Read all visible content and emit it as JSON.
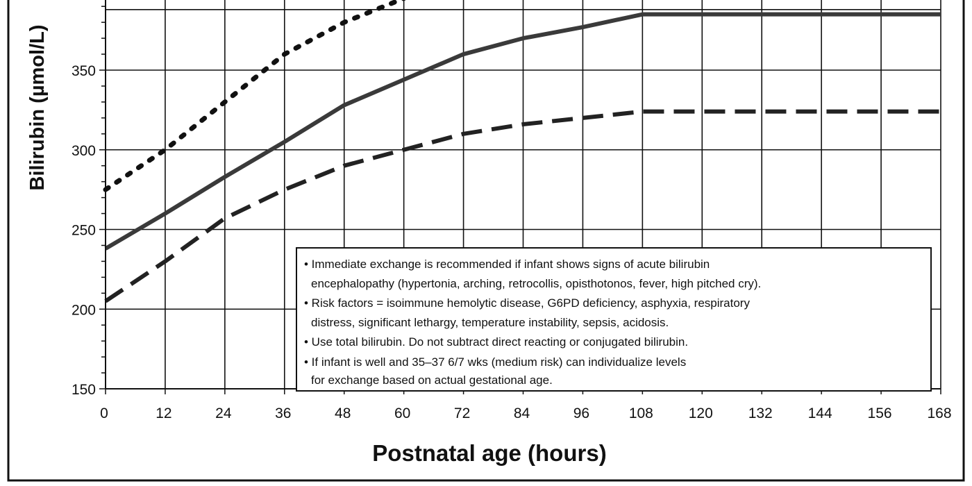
{
  "chart_data": {
    "type": "line",
    "xlabel": "Postnatal age (hours)",
    "ylabel": "Bilirubin (µmol/L)",
    "xlim": [
      0,
      168
    ],
    "ylim": [
      150,
      390
    ],
    "x_ticks": [
      0,
      12,
      24,
      36,
      48,
      60,
      72,
      84,
      96,
      108,
      120,
      132,
      144,
      156,
      168
    ],
    "y_ticks": [
      150,
      200,
      250,
      300,
      350
    ],
    "grid": true,
    "series": [
      {
        "style": "dotted",
        "color": "#111111",
        "x": [
          0,
          12,
          24,
          36,
          48,
          60
        ],
        "y": [
          275,
          300,
          330,
          360,
          380,
          395
        ]
      },
      {
        "style": "solid",
        "color": "#3a3a3a",
        "x": [
          0,
          12,
          24,
          36,
          48,
          60,
          72,
          84,
          96,
          108,
          120,
          132,
          144,
          156,
          168
        ],
        "y": [
          238,
          260,
          283,
          305,
          328,
          344,
          360,
          370,
          377,
          385,
          385,
          385,
          385,
          385,
          385
        ]
      },
      {
        "style": "dashed",
        "color": "#222222",
        "x": [
          0,
          12,
          24,
          36,
          48,
          60,
          72,
          84,
          96,
          108,
          120,
          132,
          144,
          156,
          168
        ],
        "y": [
          205,
          230,
          257,
          275,
          290,
          300,
          310,
          316,
          320,
          324,
          324,
          324,
          324,
          324,
          324
        ]
      }
    ]
  },
  "notes": [
    "• Immediate exchange is recommended if infant shows signs of acute bilirubin",
    "encephalopathy (hypertonia, arching, retrocollis, opisthotonos, fever, high pitched cry).",
    "• Risk factors = isoimmune hemolytic disease, G6PD deficiency, asphyxia, respiratory",
    "distress, significant lethargy, temperature instability, sepsis, acidosis.",
    "• Use total bilirubin. Do not subtract direct reacting or conjugated bilirubin.",
    "• If infant is well and 35–37 6/7 wks (medium risk) can individualize levels",
    "for exchange based on actual gestational age."
  ]
}
